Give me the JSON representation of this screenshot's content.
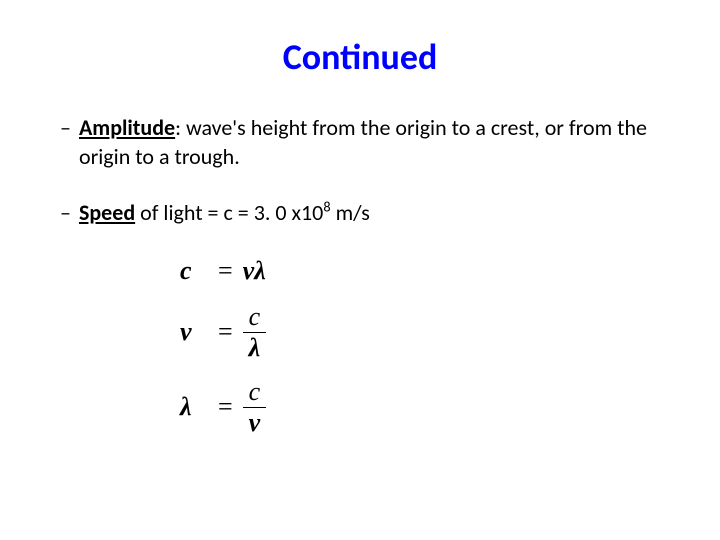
{
  "title": {
    "text": "Continued",
    "color": "#0000ff"
  },
  "bullets": [
    {
      "term": "Amplitude",
      "definition": ": wave's height from the origin to a crest, or from the origin to a trough."
    },
    {
      "term": "Speed",
      "text_before_value": " of light = c = ",
      "value": "3. 0 x10",
      "exponent": "8",
      "unit": " m/s"
    }
  ],
  "equations": {
    "eq1": {
      "lhs": "c",
      "rhs_a": "ν",
      "rhs_b": "λ"
    },
    "eq2": {
      "lhs": "ν",
      "num": "c",
      "den": "λ"
    },
    "eq3": {
      "lhs": "λ",
      "num": "c",
      "den": "ν"
    }
  },
  "colors": {
    "title": "#0000ff",
    "text": "#000000",
    "background": "#ffffff"
  }
}
